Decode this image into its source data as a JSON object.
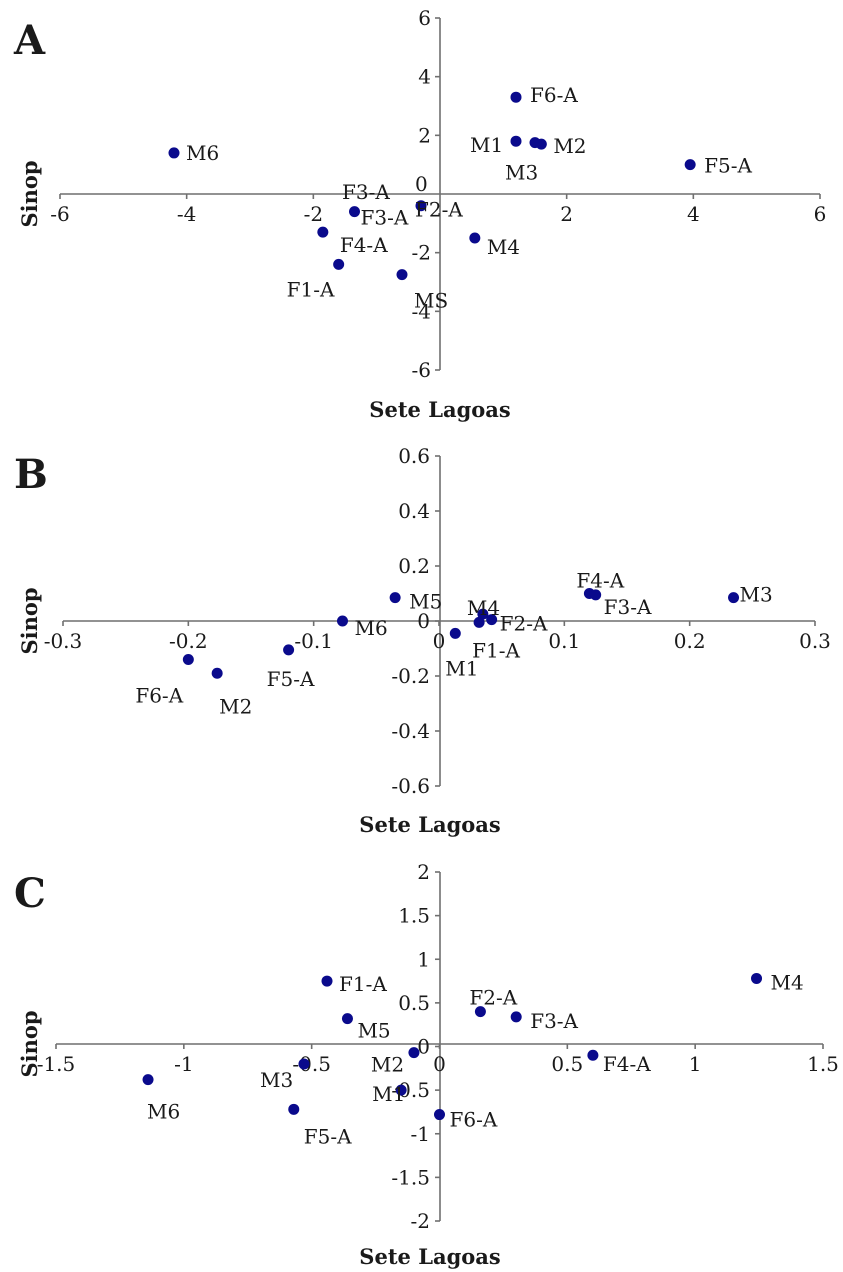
{
  "chart_data": [
    {
      "type": "scatter",
      "panel_label": "A",
      "xlabel": "Sete Lagoas",
      "ylabel": "Sinop",
      "xlim": [
        -6,
        6
      ],
      "ylim": [
        -6,
        6
      ],
      "x_ticks": [
        "-6",
        "-4",
        "-2",
        "0",
        "2",
        "4",
        "6"
      ],
      "y_ticks": [
        "6",
        "4",
        "2",
        "0",
        "-2",
        "-4",
        "-6"
      ],
      "grid": false,
      "points": [
        {
          "label": "F6-A",
          "x": 1.2,
          "y": 3.3
        },
        {
          "label": "M1",
          "x": 1.2,
          "y": 1.8
        },
        {
          "label": "M2",
          "x": 1.6,
          "y": 1.7
        },
        {
          "label": "M3",
          "x": 1.5,
          "y": 1.75
        },
        {
          "label": "F5-A",
          "x": 3.95,
          "y": 1.0
        },
        {
          "label": "M6",
          "x": -4.2,
          "y": 1.4
        },
        {
          "label": "F3-A",
          "x": -1.35,
          "y": -0.6
        },
        {
          "label": "F2-A",
          "x": -0.3,
          "y": -0.4
        },
        {
          "label": "F4-A",
          "x": -1.85,
          "y": -1.3
        },
        {
          "label": "M4",
          "x": 0.55,
          "y": -1.5
        },
        {
          "label": "F1-A",
          "x": -1.6,
          "y": -2.4
        },
        {
          "label": "MS",
          "x": -0.6,
          "y": -2.75
        }
      ],
      "extra_labels": [
        "F3-A",
        "0"
      ]
    },
    {
      "type": "scatter",
      "panel_label": "B",
      "xlabel": "Sete Lagoas",
      "ylabel": "Sinop",
      "xlim": [
        -0.3,
        0.3
      ],
      "ylim": [
        -0.6,
        0.6
      ],
      "x_ticks": [
        "-0.3",
        "-0.2",
        "-0.1",
        "0",
        "0.1",
        "0.2",
        "0.3"
      ],
      "y_ticks": [
        "0.6",
        "0.4",
        "0.2",
        "0",
        "-0.2",
        "-0.4",
        "-0.6"
      ],
      "grid": false,
      "points": [
        {
          "label": "M3",
          "x": 0.235,
          "y": 0.085
        },
        {
          "label": "F4-A",
          "x": 0.12,
          "y": 0.1
        },
        {
          "label": "F3-A",
          "x": 0.125,
          "y": 0.095
        },
        {
          "label": "M5",
          "x": -0.035,
          "y": 0.085
        },
        {
          "label": "M4",
          "x": 0.035,
          "y": 0.025
        },
        {
          "label": "F2-A",
          "x": 0.042,
          "y": 0.005
        },
        {
          "label": "M6",
          "x": -0.077,
          "y": 0.0
        },
        {
          "label": "F1-A",
          "x": 0.032,
          "y": -0.005
        },
        {
          "label": "M1",
          "x": 0.013,
          "y": -0.045
        },
        {
          "label": "F5-A",
          "x": -0.12,
          "y": -0.105
        },
        {
          "label": "F6-A",
          "x": -0.2,
          "y": -0.14
        },
        {
          "label": "M2",
          "x": -0.177,
          "y": -0.19
        }
      ]
    },
    {
      "type": "scatter",
      "panel_label": "C",
      "xlabel": "Sete Lagoas",
      "ylabel": "Sinop",
      "xlim": [
        -1.5,
        1.5
      ],
      "ylim": [
        -2,
        2
      ],
      "x_ticks": [
        "-1.5",
        "-1",
        "-0.5",
        "0",
        "0.5",
        "1",
        "1.5"
      ],
      "y_ticks": [
        "2",
        "1.5",
        "1",
        "0.5",
        "0",
        "-0.5",
        "-1",
        "-1.5",
        "-2"
      ],
      "grid": false,
      "points": [
        {
          "label": "M4",
          "x": 1.24,
          "y": 0.78
        },
        {
          "label": "F1-A",
          "x": -0.44,
          "y": 0.75
        },
        {
          "label": "F2-A",
          "x": 0.16,
          "y": 0.4
        },
        {
          "label": "F3-A",
          "x": 0.3,
          "y": 0.34
        },
        {
          "label": "M5",
          "x": -0.36,
          "y": 0.32
        },
        {
          "label": "M2",
          "x": -0.1,
          "y": -0.07
        },
        {
          "label": "F4-A",
          "x": 0.6,
          "y": -0.1
        },
        {
          "label": "M3",
          "x": -0.53,
          "y": -0.2
        },
        {
          "label": "M6",
          "x": -1.14,
          "y": -0.38
        },
        {
          "label": "M1",
          "x": -0.15,
          "y": -0.5
        },
        {
          "label": "F5-A",
          "x": -0.57,
          "y": -0.72
        },
        {
          "label": "F6-A",
          "x": 0.0,
          "y": -0.78
        }
      ]
    }
  ]
}
